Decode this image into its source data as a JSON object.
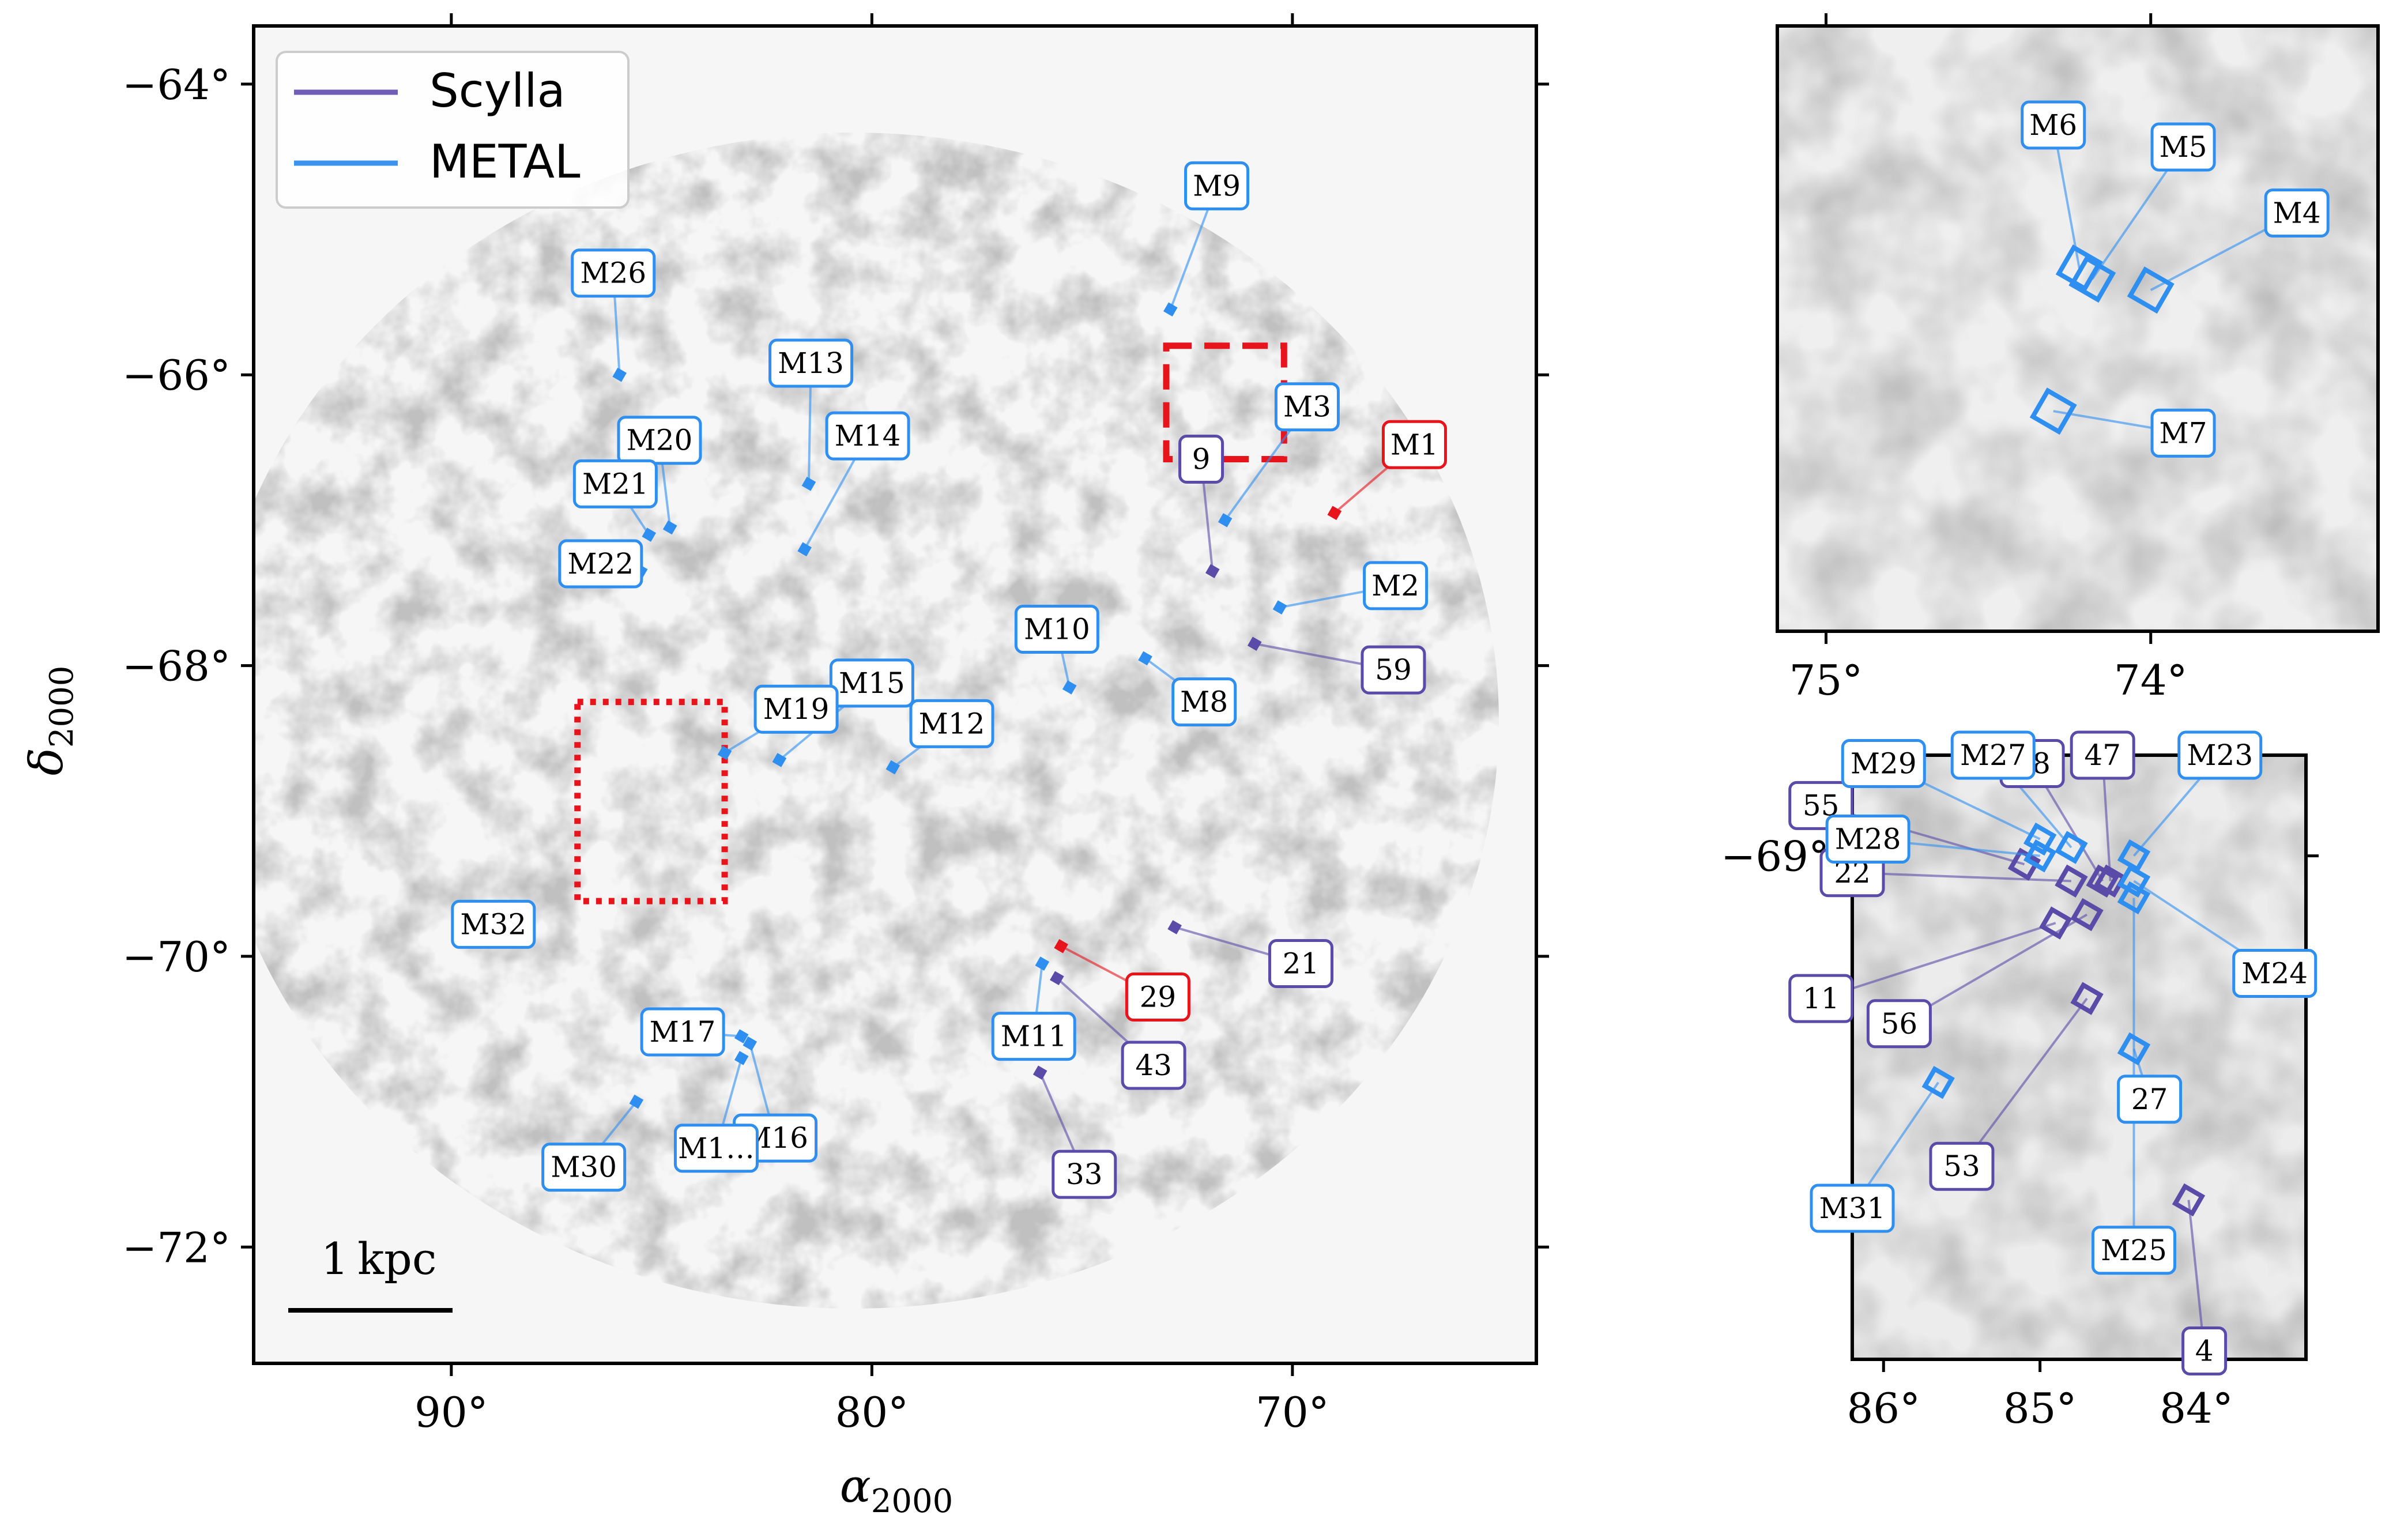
{
  "colors": {
    "scylla": "#5b4ba8",
    "metal": "#2f8ff0",
    "highlight": "#e8141b",
    "frame": "#000000"
  },
  "legend": {
    "entries": [
      {
        "name": "Scylla",
        "color": "#6f5fb8"
      },
      {
        "name": "METAL",
        "color": "#3a93ee"
      }
    ]
  },
  "scalebar": {
    "label": "1 kpc"
  },
  "main": {
    "xlabel": "α",
    "xlabel_sub": "2000",
    "ylabel": "δ",
    "ylabel_sub": "2000",
    "xticks": [
      {
        "v": 90,
        "t": "90°"
      },
      {
        "v": 80,
        "t": "80°"
      },
      {
        "v": 70,
        "t": "70°"
      }
    ],
    "yticks": [
      {
        "v": -64,
        "t": "−64°"
      },
      {
        "v": -66,
        "t": "−66°"
      },
      {
        "v": -68,
        "t": "−68°"
      },
      {
        "v": -70,
        "t": "−70°"
      },
      {
        "v": -72,
        "t": "−72°"
      }
    ],
    "xlim": [
      94.7,
      64.2
    ],
    "ylim": [
      -72.8,
      -63.6
    ]
  },
  "inset_top": {
    "xticks": [
      {
        "v": 75,
        "t": "75°"
      },
      {
        "v": 74,
        "t": "74°"
      }
    ],
    "xlim": [
      75.15,
      73.3
    ],
    "ylim": [
      -66.4,
      -65.85
    ]
  },
  "inset_bottom": {
    "xticks": [
      {
        "v": 86,
        "t": "86°"
      },
      {
        "v": 85,
        "t": "85°"
      },
      {
        "v": 84,
        "t": "84°"
      }
    ],
    "yticks": [
      {
        "v": -69,
        "t": "−69°"
      }
    ],
    "xlim": [
      86.2,
      83.3
    ],
    "ylim": [
      -69.6,
      -68.88
    ]
  },
  "chart_data": [
    {
      "type": "scatter",
      "panel": "main",
      "title": "",
      "xlabel": "α2000",
      "ylabel": "δ2000",
      "xlim": [
        94.7,
        64.2
      ],
      "ylim": [
        -72.8,
        -63.6
      ],
      "legend_position": "top-left",
      "grid": false,
      "series": [
        {
          "name": "Scylla",
          "points": [
            {
              "id": "9",
              "ra": 71.9,
              "dec": -67.35,
              "lx": 72.17,
              "ly": -66.58
            },
            {
              "id": "59",
              "ra": 70.9,
              "dec": -67.85,
              "lx": 67.6,
              "ly": -68.03
            },
            {
              "id": "21",
              "ra": 72.8,
              "dec": -69.8,
              "lx": 69.8,
              "ly": -70.05
            },
            {
              "id": "43",
              "ra": 75.6,
              "dec": -70.15,
              "lx": 73.3,
              "ly": -70.75
            },
            {
              "id": "33",
              "ra": 76.0,
              "dec": -70.8,
              "lx": 74.95,
              "ly": -71.5
            }
          ]
        },
        {
          "name": "METAL",
          "points": [
            {
              "id": "M9",
              "ra": 72.9,
              "dec": -65.55,
              "lx": 71.8,
              "ly": -64.7
            },
            {
              "id": "M3",
              "ra": 71.6,
              "dec": -67.0,
              "lx": 69.65,
              "ly": -66.22
            },
            {
              "id": "M2",
              "ra": 70.3,
              "dec": -67.6,
              "lx": 67.55,
              "ly": -67.45
            },
            {
              "id": "M10",
              "ra": 75.3,
              "dec": -68.15,
              "lx": 75.6,
              "ly": -67.75
            },
            {
              "id": "M8",
              "ra": 73.5,
              "dec": -67.95,
              "lx": 72.1,
              "ly": -68.25
            },
            {
              "id": "M12",
              "ra": 79.5,
              "dec": -68.7,
              "lx": 78.1,
              "ly": -68.4
            },
            {
              "id": "M15",
              "ra": 82.2,
              "dec": -68.65,
              "lx": 80.0,
              "ly": -68.12
            },
            {
              "id": "M19",
              "ra": 83.5,
              "dec": -68.6,
              "lx": 81.8,
              "ly": -68.3
            },
            {
              "id": "M13",
              "ra": 81.5,
              "dec": -66.75,
              "lx": 81.45,
              "ly": -65.92
            },
            {
              "id": "M14",
              "ra": 81.6,
              "dec": -67.2,
              "lx": 80.1,
              "ly": -66.42
            },
            {
              "id": "M26",
              "ra": 86.0,
              "dec": -66.0,
              "lx": 86.15,
              "ly": -65.3
            },
            {
              "id": "M20",
              "ra": 84.8,
              "dec": -67.05,
              "lx": 85.05,
              "ly": -66.45
            },
            {
              "id": "M21",
              "ra": 85.3,
              "dec": -67.1,
              "lx": 86.1,
              "ly": -66.75
            },
            {
              "id": "M22",
              "ra": 85.5,
              "dec": -67.35,
              "lx": 86.45,
              "ly": -67.3
            },
            {
              "id": "M32",
              "ra": 88.2,
              "dec": -69.7,
              "lx": 89.0,
              "ly": -69.78
            },
            {
              "id": "M17",
              "ra": 83.1,
              "dec": -70.55,
              "lx": 84.5,
              "ly": -70.52
            },
            {
              "id": "M16",
              "ra": 82.9,
              "dec": -70.6,
              "lx": 82.3,
              "ly": -71.25
            },
            {
              "id": "M1…",
              "ra": 83.1,
              "dec": -70.7,
              "lx": 83.7,
              "ly": -71.32
            },
            {
              "id": "M30",
              "ra": 85.6,
              "dec": -71.0,
              "lx": 86.85,
              "ly": -71.45
            },
            {
              "id": "M11",
              "ra": 75.95,
              "dec": -70.05,
              "lx": 76.15,
              "ly": -70.55
            }
          ]
        },
        {
          "name": "",
          "color": "#e8141b",
          "points": [
            {
              "id": "M1",
              "ra": 69.0,
              "dec": -66.95,
              "lx": 67.1,
              "ly": -66.48
            },
            {
              "id": "29",
              "ra": 75.5,
              "dec": -69.93,
              "lx": 73.2,
              "ly": -70.28
            }
          ]
        }
      ],
      "boxes": [
        {
          "style": "dashed",
          "color": "#e8141b",
          "ra_range": [
            73.0,
            70.2
          ],
          "dec_range": [
            -65.8,
            -66.58
          ]
        },
        {
          "style": "dotted",
          "color": "#e8141b",
          "ra_range": [
            87.0,
            83.5
          ],
          "dec_range": [
            -68.25,
            -69.62
          ]
        }
      ]
    },
    {
      "type": "scatter",
      "panel": "inset_top",
      "title": "",
      "xlabel": "",
      "ylabel": "",
      "xlim": [
        75.15,
        73.3
      ],
      "ylim": [
        -66.4,
        -65.85
      ],
      "series": [
        {
          "name": "METAL",
          "points": [
            {
              "id": "M6",
              "ra": 74.22,
              "dec": -66.07,
              "lx": 74.3,
              "ly": -65.94
            },
            {
              "id": "M5",
              "ra": 74.18,
              "dec": -66.08,
              "lx": 73.9,
              "ly": -65.96
            },
            {
              "id": "M4",
              "ra": 74.0,
              "dec": -66.09,
              "lx": 73.55,
              "ly": -66.02
            },
            {
              "id": "M7",
              "ra": 74.3,
              "dec": -66.2,
              "lx": 73.9,
              "ly": -66.22
            }
          ]
        }
      ]
    },
    {
      "type": "scatter",
      "panel": "inset_bottom",
      "title": "",
      "xlabel": "",
      "ylabel": "",
      "xlim": [
        86.2,
        83.3
      ],
      "ylim": [
        -69.6,
        -68.88
      ],
      "series": [
        {
          "name": "Scylla",
          "points": [
            {
              "id": "48",
              "ra": 84.6,
              "dec": -69.03,
              "lx": 85.05,
              "ly": -68.89
            },
            {
              "id": "47",
              "ra": 84.55,
              "dec": -69.03,
              "lx": 84.6,
              "ly": -68.88
            },
            {
              "id": "55",
              "ra": 85.1,
              "dec": -69.01,
              "lx": 86.4,
              "ly": -68.94
            },
            {
              "id": "22",
              "ra": 84.8,
              "dec": -69.03,
              "lx": 86.2,
              "ly": -69.02
            },
            {
              "id": "11",
              "ra": 84.9,
              "dec": -69.08,
              "lx": 86.4,
              "ly": -69.17
            },
            {
              "id": "56",
              "ra": 84.7,
              "dec": -69.07,
              "lx": 85.9,
              "ly": -69.2
            },
            {
              "id": "53",
              "ra": 84.7,
              "dec": -69.17,
              "lx": 85.5,
              "ly": -69.37
            },
            {
              "id": "4",
              "ra": 84.05,
              "dec": -69.41,
              "lx": 83.95,
              "ly": -69.59
            }
          ]
        },
        {
          "name": "METAL",
          "points": [
            {
              "id": "M29",
              "ra": 85.0,
              "dec": -68.98,
              "lx": 86.0,
              "ly": -68.89
            },
            {
              "id": "M27",
              "ra": 84.8,
              "dec": -68.99,
              "lx": 85.3,
              "ly": -68.88
            },
            {
              "id": "M28",
              "ra": 85.0,
              "dec": -69.0,
              "lx": 86.1,
              "ly": -68.98
            },
            {
              "id": "M23",
              "ra": 84.4,
              "dec": -69.0,
              "lx": 83.85,
              "ly": -68.88
            },
            {
              "id": "M24",
              "ra": 84.4,
              "dec": -69.03,
              "lx": 83.5,
              "ly": -69.14
            },
            {
              "id": "27",
              "ra": 84.4,
              "dec": -69.23,
              "lx": 84.3,
              "ly": -69.29
            },
            {
              "id": "M25",
              "ra": 84.4,
              "dec": -69.05,
              "lx": 84.4,
              "ly": -69.47
            },
            {
              "id": "M31",
              "ra": 85.65,
              "dec": -69.27,
              "lx": 86.2,
              "ly": -69.42
            }
          ]
        }
      ]
    }
  ]
}
